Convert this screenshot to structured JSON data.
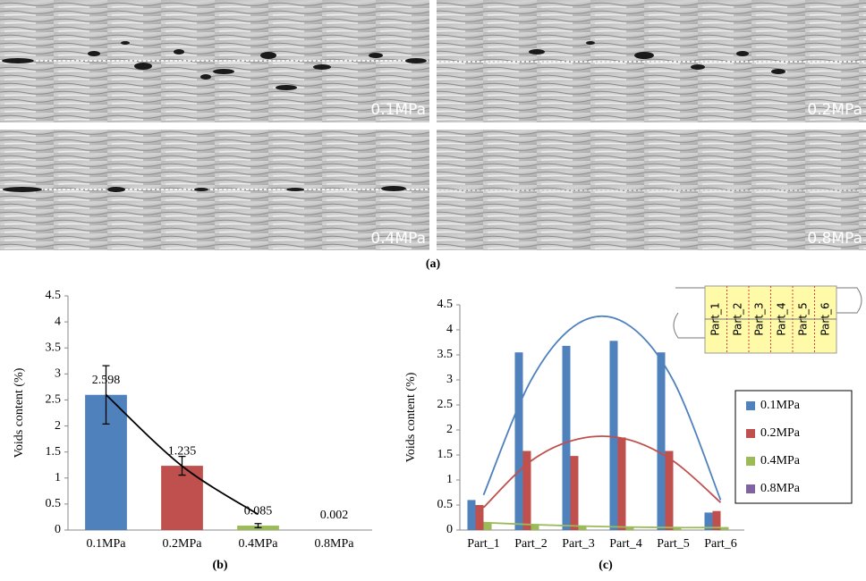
{
  "figure": {
    "panel_a": {
      "labels": [
        "0.1MPa",
        "0.2MPa",
        "0.4MPa",
        "0.8MPa"
      ],
      "caption": "(a)"
    }
  },
  "chart_data": [
    {
      "type": "bar",
      "caption": "(b)",
      "y_label": "Voids content (%)",
      "categories": [
        "0.1MPa",
        "0.2MPa",
        "0.4MPa",
        "0.8MPa"
      ],
      "values": [
        2.598,
        1.235,
        0.085,
        0.002
      ],
      "errors": [
        0.56,
        0.18,
        0.04,
        null
      ],
      "colors": [
        "#4f81bd",
        "#c0504d",
        "#9bbb59",
        "#8064a2"
      ],
      "trendline": {
        "color": "#000000",
        "values": [
          2.6,
          1.23,
          0.3,
          null
        ]
      },
      "ylim": [
        0,
        4.5
      ],
      "yticks": [
        0,
        0.5,
        1,
        1.5,
        2,
        2.5,
        3,
        3.5,
        4,
        4.5
      ]
    },
    {
      "type": "grouped_bar",
      "caption": "(c)",
      "y_label": "Voids content (%)",
      "categories": [
        "Part_1",
        "Part_2",
        "Part_3",
        "Part_4",
        "Part_5",
        "Part_6"
      ],
      "series": [
        {
          "name": "0.1MPa",
          "color": "#4f81bd",
          "values": [
            0.6,
            3.55,
            3.68,
            3.78,
            3.55,
            0.35
          ],
          "trend": [
            0.7,
            2.99,
            4.13,
            4.13,
            2.99,
            0.6
          ]
        },
        {
          "name": "0.2MPa",
          "color": "#c0504d",
          "values": [
            0.5,
            1.58,
            1.48,
            1.85,
            1.58,
            0.38
          ],
          "trend": [
            0.45,
            1.38,
            1.82,
            1.82,
            1.38,
            0.55
          ]
        },
        {
          "name": "0.4MPa",
          "color": "#9bbb59",
          "values": [
            0.15,
            0.12,
            0.08,
            0.05,
            0.05,
            0.06
          ],
          "trend": [
            0.15,
            0.11,
            0.08,
            0.06,
            0.05,
            0.05
          ]
        },
        {
          "name": "0.8MPa",
          "color": "#8064a2",
          "values": [
            0,
            0,
            0,
            0,
            0,
            0
          ]
        }
      ],
      "ylim": [
        0,
        4.5
      ],
      "yticks": [
        0,
        0.5,
        1,
        1.5,
        2,
        2.5,
        3,
        3.5,
        4,
        4.5
      ],
      "legend": "right"
    }
  ]
}
